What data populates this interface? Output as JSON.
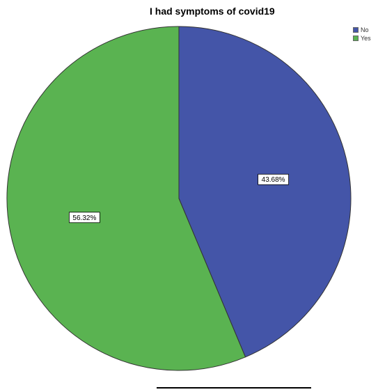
{
  "chart_data": {
    "type": "pie",
    "title": "I had symptoms of covid19",
    "categories": [
      "No",
      "Yes"
    ],
    "values": [
      43.68,
      56.32
    ],
    "data_labels": [
      "43.68%",
      "56.32%"
    ],
    "colors": [
      "#4455a8",
      "#5ab351"
    ],
    "legend": {
      "placement": "top-right",
      "entries": [
        "No",
        "Yes"
      ]
    }
  }
}
